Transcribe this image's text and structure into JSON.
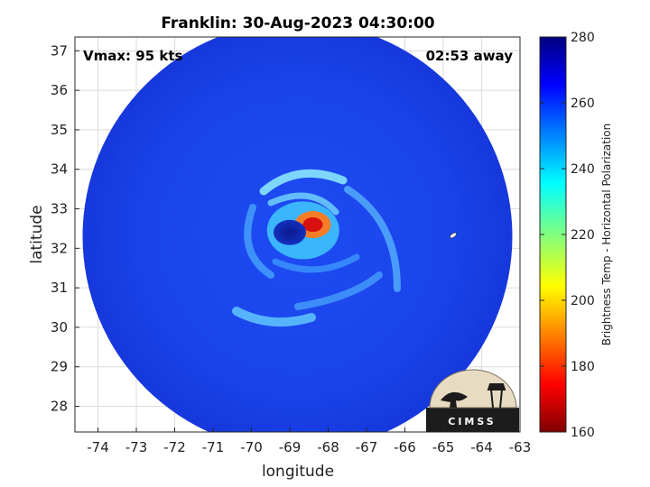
{
  "chart_data": {
    "type": "heatmap",
    "title": "Franklin: 30-Aug-2023 04:30:00",
    "xlabel": "longitude",
    "ylabel": "latitude",
    "xlim": [
      -74.6,
      -63
    ],
    "ylim": [
      27.35,
      37.35
    ],
    "x_ticks": [
      "-74",
      "-73",
      "-72",
      "-71",
      "-70",
      "-69",
      "-68",
      "-67",
      "-66",
      "-65",
      "-64",
      "-63"
    ],
    "y_ticks": [
      "37",
      "36",
      "35",
      "34",
      "33",
      "32",
      "31",
      "30",
      "29",
      "28"
    ],
    "grid": true,
    "annotations": {
      "vmax": "Vmax: 95 kts",
      "time_away": "02:53 away"
    },
    "storm_center": {
      "lon": -69.0,
      "lat": 32.4
    },
    "warm_eyewall": {
      "lon": -68.4,
      "lat": 32.6
    },
    "swath_center": {
      "lon": -68.8,
      "lat": 32.3
    },
    "swath_radius_deg": 5.6,
    "colorbar": {
      "label": "Brightness Temp - Horizontal Polarization",
      "min": 160,
      "max": 280,
      "ticks": [
        "280",
        "260",
        "240",
        "220",
        "200",
        "180",
        "160"
      ],
      "colormap": "jet"
    }
  },
  "logo": {
    "text": "CIMSS"
  }
}
